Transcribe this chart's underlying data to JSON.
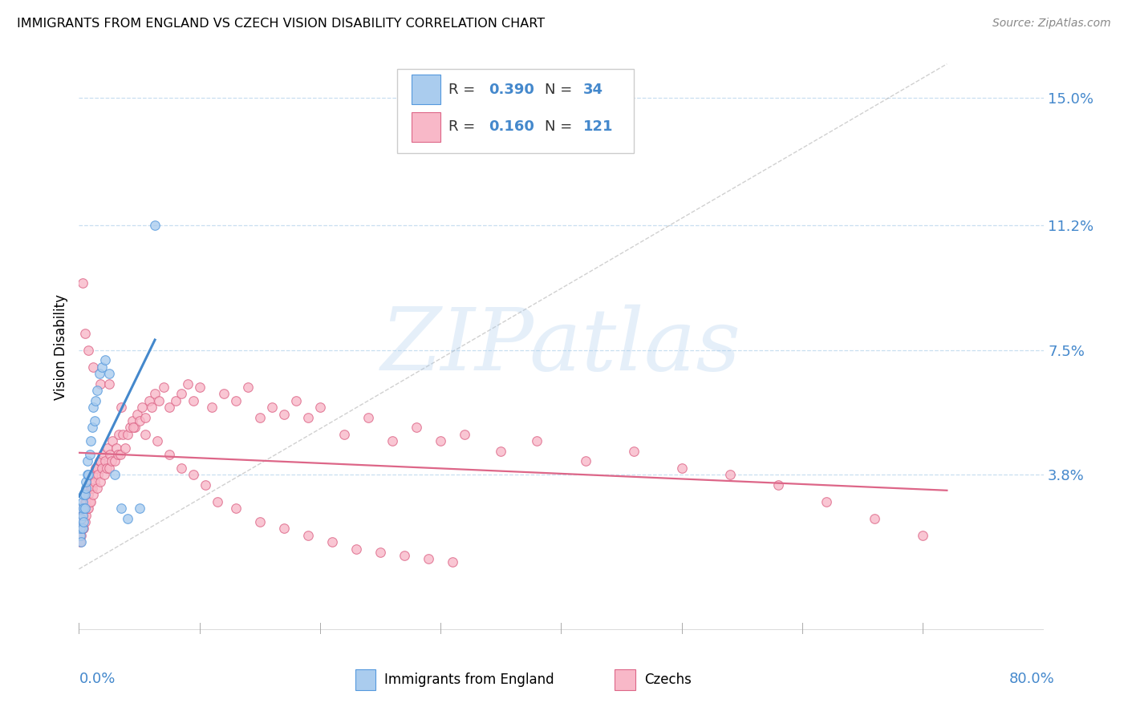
{
  "title": "IMMIGRANTS FROM ENGLAND VS CZECH VISION DISABILITY CORRELATION CHART",
  "source": "Source: ZipAtlas.com",
  "ylabel": "Vision Disability",
  "ytick_vals": [
    0.038,
    0.075,
    0.112,
    0.15
  ],
  "ytick_labels": [
    "3.8%",
    "7.5%",
    "11.2%",
    "15.0%"
  ],
  "xmin": 0.0,
  "xmax": 0.8,
  "ymin": -0.01,
  "ymax": 0.162,
  "blue_fill": "#aaccee",
  "blue_edge": "#5599dd",
  "pink_fill": "#f8b8c8",
  "pink_edge": "#dd6688",
  "blue_line": "#4488cc",
  "pink_line": "#dd6688",
  "axis_label_color": "#4488cc",
  "grid_color": "#c8dff0",
  "R_blue": 0.39,
  "N_blue": 34,
  "R_pink": 0.16,
  "N_pink": 121,
  "watermark": "ZIPatlas",
  "label_blue": "Immigrants from England",
  "label_pink": "Czechs",
  "blue_x": [
    0.001,
    0.001,
    0.002,
    0.002,
    0.002,
    0.003,
    0.003,
    0.003,
    0.004,
    0.004,
    0.004,
    0.005,
    0.005,
    0.006,
    0.006,
    0.007,
    0.007,
    0.008,
    0.009,
    0.01,
    0.011,
    0.012,
    0.013,
    0.014,
    0.015,
    0.017,
    0.019,
    0.022,
    0.025,
    0.03,
    0.035,
    0.04,
    0.05,
    0.063
  ],
  "blue_y": [
    0.02,
    0.022,
    0.018,
    0.025,
    0.028,
    0.022,
    0.026,
    0.03,
    0.024,
    0.028,
    0.032,
    0.028,
    0.032,
    0.034,
    0.036,
    0.038,
    0.042,
    0.038,
    0.044,
    0.048,
    0.052,
    0.058,
    0.054,
    0.06,
    0.063,
    0.068,
    0.07,
    0.072,
    0.068,
    0.038,
    0.028,
    0.025,
    0.028,
    0.112
  ],
  "pink_x": [
    0.001,
    0.001,
    0.002,
    0.002,
    0.002,
    0.003,
    0.003,
    0.004,
    0.004,
    0.005,
    0.005,
    0.005,
    0.006,
    0.006,
    0.007,
    0.007,
    0.008,
    0.008,
    0.009,
    0.009,
    0.01,
    0.01,
    0.011,
    0.011,
    0.012,
    0.012,
    0.013,
    0.014,
    0.015,
    0.015,
    0.016,
    0.017,
    0.018,
    0.018,
    0.019,
    0.02,
    0.021,
    0.022,
    0.023,
    0.024,
    0.025,
    0.026,
    0.027,
    0.028,
    0.03,
    0.031,
    0.032,
    0.033,
    0.034,
    0.036,
    0.038,
    0.04,
    0.042,
    0.044,
    0.046,
    0.048,
    0.05,
    0.052,
    0.055,
    0.058,
    0.06,
    0.063,
    0.066,
    0.07,
    0.075,
    0.08,
    0.085,
    0.09,
    0.095,
    0.1,
    0.11,
    0.12,
    0.13,
    0.14,
    0.15,
    0.16,
    0.17,
    0.18,
    0.19,
    0.2,
    0.22,
    0.24,
    0.26,
    0.28,
    0.3,
    0.32,
    0.35,
    0.38,
    0.42,
    0.46,
    0.5,
    0.54,
    0.58,
    0.62,
    0.66,
    0.7,
    0.003,
    0.005,
    0.008,
    0.012,
    0.018,
    0.025,
    0.035,
    0.045,
    0.055,
    0.065,
    0.075,
    0.085,
    0.095,
    0.105,
    0.115,
    0.13,
    0.15,
    0.17,
    0.19,
    0.21,
    0.23,
    0.25,
    0.27,
    0.29,
    0.31
  ],
  "pink_y": [
    0.018,
    0.022,
    0.02,
    0.024,
    0.028,
    0.022,
    0.026,
    0.022,
    0.026,
    0.024,
    0.028,
    0.03,
    0.026,
    0.03,
    0.028,
    0.034,
    0.028,
    0.032,
    0.03,
    0.036,
    0.03,
    0.034,
    0.034,
    0.038,
    0.032,
    0.038,
    0.036,
    0.04,
    0.034,
    0.04,
    0.038,
    0.042,
    0.036,
    0.042,
    0.04,
    0.044,
    0.038,
    0.042,
    0.04,
    0.046,
    0.04,
    0.044,
    0.042,
    0.048,
    0.042,
    0.046,
    0.044,
    0.05,
    0.044,
    0.05,
    0.046,
    0.05,
    0.052,
    0.054,
    0.052,
    0.056,
    0.054,
    0.058,
    0.055,
    0.06,
    0.058,
    0.062,
    0.06,
    0.064,
    0.058,
    0.06,
    0.062,
    0.065,
    0.06,
    0.064,
    0.058,
    0.062,
    0.06,
    0.064,
    0.055,
    0.058,
    0.056,
    0.06,
    0.055,
    0.058,
    0.05,
    0.055,
    0.048,
    0.052,
    0.048,
    0.05,
    0.045,
    0.048,
    0.042,
    0.045,
    0.04,
    0.038,
    0.035,
    0.03,
    0.025,
    0.02,
    0.095,
    0.08,
    0.075,
    0.07,
    0.065,
    0.065,
    0.058,
    0.052,
    0.05,
    0.048,
    0.044,
    0.04,
    0.038,
    0.035,
    0.03,
    0.028,
    0.024,
    0.022,
    0.02,
    0.018,
    0.016,
    0.015,
    0.014,
    0.013,
    0.012
  ]
}
